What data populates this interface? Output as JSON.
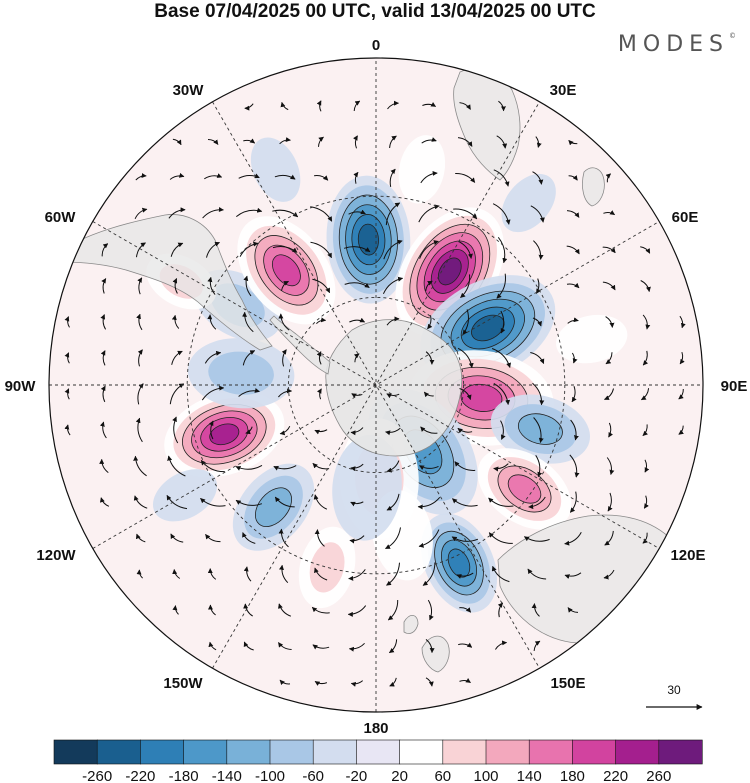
{
  "header": {
    "title": "Base 07/04/2025 00 UTC, valid 13/04/2025 00 UTC",
    "brand": "MODES",
    "brand_mark": "©"
  },
  "map": {
    "projection": "south polar stereographic",
    "longitude_labels": [
      "0",
      "30E",
      "60E",
      "90E",
      "120E",
      "150E",
      "180",
      "150W",
      "120W",
      "90W",
      "60W",
      "30W"
    ],
    "reference_vector_label": "30"
  },
  "colors": {
    "land": "#e6e6e6",
    "coast": "#8a8a8a",
    "grid": "#333333"
  },
  "colorbar": {
    "ticks": [
      "-260",
      "-220",
      "-180",
      "-140",
      "-100",
      "-60",
      "-20",
      "20",
      "60",
      "100",
      "140",
      "180",
      "220",
      "260"
    ],
    "colors": [
      "#133a5b",
      "#1a5f8f",
      "#2e7fb6",
      "#4d98c9",
      "#79b1d8",
      "#a9c7e6",
      "#d3ddef",
      "#e8e6f4",
      "#ffffff",
      "#f9d3d6",
      "#f3a8bd",
      "#e873ae",
      "#d2439f",
      "#a41f8e",
      "#6e1b7c"
    ]
  },
  "chart_data": {
    "type": "heatmap",
    "title": "Base 07/04/2025 00 UTC, valid 13/04/2025 00 UTC",
    "field": "anomaly with wind vectors (south polar map)",
    "levels": [
      -260,
      -220,
      -180,
      -140,
      -100,
      -60,
      -20,
      20,
      60,
      100,
      140,
      180,
      220,
      260
    ],
    "vector_reference": 30,
    "anomaly_centers": [
      {
        "lon": -3,
        "lat": -42,
        "value": -230
      },
      {
        "lon": 33,
        "lat": -45,
        "value": 270
      },
      {
        "lon": 63,
        "lat": -48,
        "value": -260
      },
      {
        "lon": 97,
        "lat": -54,
        "value": 220
      },
      {
        "lon": 105,
        "lat": -35,
        "value": -140
      },
      {
        "lon": 145,
        "lat": -62,
        "value": -150
      },
      {
        "lon": 125,
        "lat": -32,
        "value": 180
      },
      {
        "lon": 155,
        "lat": -28,
        "value": -220
      },
      {
        "lon": 178,
        "lat": -58,
        "value": 90
      },
      {
        "lon": -165,
        "lat": -30,
        "value": 70
      },
      {
        "lon": -140,
        "lat": -38,
        "value": -110
      },
      {
        "lon": -108,
        "lat": -38,
        "value": 240
      },
      {
        "lon": -85,
        "lat": -45,
        "value": -100
      },
      {
        "lon": -60,
        "lat": -38,
        "value": -80
      },
      {
        "lon": -38,
        "lat": -42,
        "value": 200
      },
      {
        "lon": -62,
        "lat": -22,
        "value": 80
      },
      {
        "lon": -25,
        "lat": -18,
        "value": -60
      },
      {
        "lon": 12,
        "lat": -22,
        "value": 40
      },
      {
        "lon": 40,
        "lat": -18,
        "value": -50
      },
      {
        "lon": 78,
        "lat": -22,
        "value": 60
      },
      {
        "lon": -120,
        "lat": -22,
        "value": -40
      },
      {
        "lon": 170,
        "lat": -40,
        "value": 50
      },
      {
        "lon": -175,
        "lat": -55,
        "value": -40
      }
    ]
  }
}
